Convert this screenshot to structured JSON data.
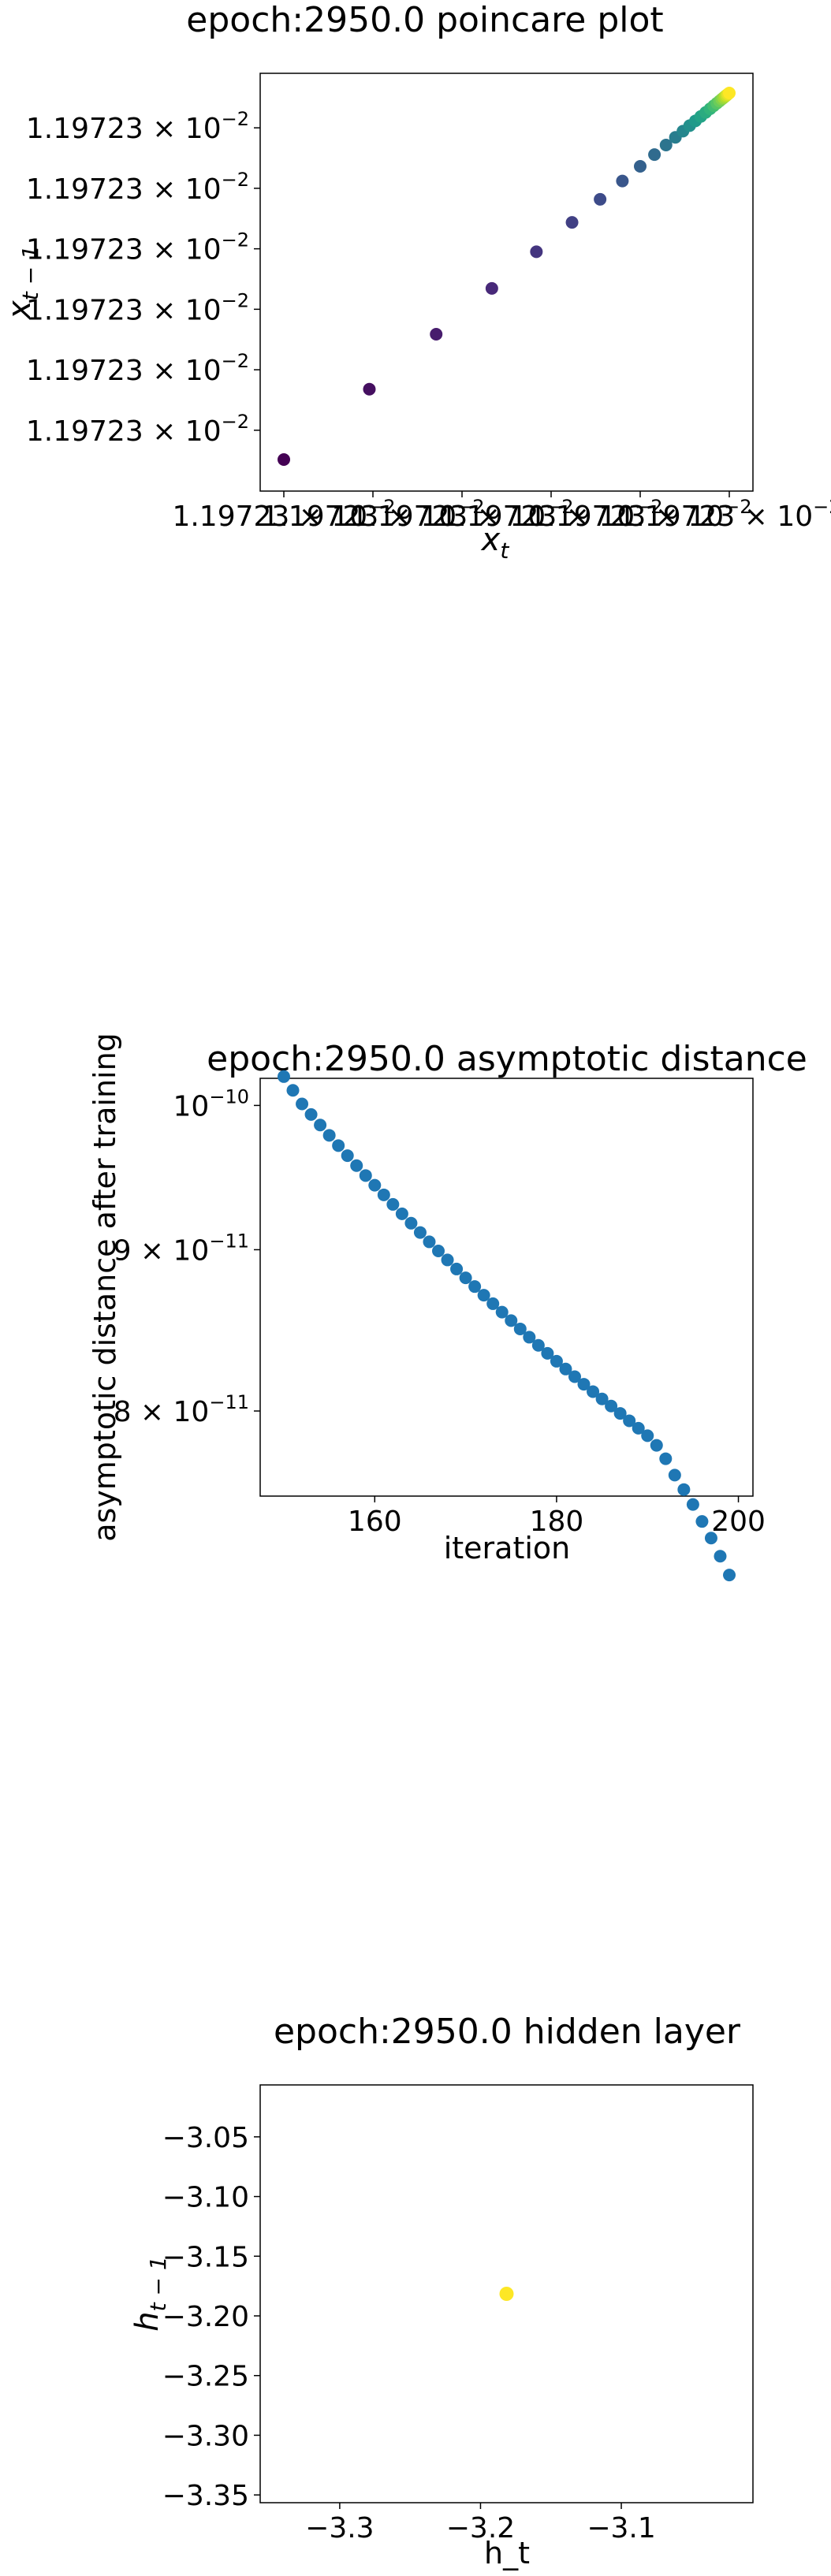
{
  "chart_data": [
    {
      "type": "scatter",
      "title": "epoch:2950.0 poincare plot",
      "xlabel": "x",
      "xlabel_sub": "t",
      "ylabel": "x",
      "ylabel_sub": "t − 1",
      "tick_mantissa": "1.19723",
      "tick_times": "×",
      "tick_base": "10",
      "tick_exp": "−2",
      "xlim": [
        0,
        1
      ],
      "ylim": [
        0,
        1
      ],
      "y_ticks": [
        0.08,
        0.245,
        0.41,
        0.575,
        0.74,
        0.905
      ],
      "x_ticks": [
        0.0,
        0.2,
        0.4,
        0.6,
        0.8,
        1.0
      ],
      "x": [
        0.0,
        0.192,
        0.342,
        0.467,
        0.567,
        0.647,
        0.71,
        0.76,
        0.8,
        0.832,
        0.858,
        0.879,
        0.896,
        0.911,
        0.924,
        0.936,
        0.947,
        0.957,
        0.965,
        0.972,
        0.978,
        0.983,
        0.987,
        0.991,
        0.994,
        0.997,
        1.0
      ],
      "y": [
        0.0,
        0.192,
        0.342,
        0.467,
        0.567,
        0.647,
        0.71,
        0.76,
        0.8,
        0.832,
        0.858,
        0.879,
        0.896,
        0.911,
        0.924,
        0.936,
        0.947,
        0.957,
        0.965,
        0.972,
        0.978,
        0.983,
        0.987,
        0.991,
        0.994,
        0.997,
        1.0
      ],
      "colormap": [
        "#440154",
        "#482878",
        "#3e4989",
        "#31688e",
        "#26828e",
        "#1f9e89",
        "#35b779",
        "#6ece58",
        "#b5de2b",
        "#fde725"
      ]
    },
    {
      "type": "scatter",
      "title": "epoch:2950.0 asymptotic distance",
      "xlabel": "iteration",
      "ylabel": "asymptotic distance after training",
      "xlim": [
        147.4,
        201.6
      ],
      "log_ylim": [
        -10.1239,
        -9.9914
      ],
      "x_ticks": [
        160,
        180,
        200
      ],
      "y_ticks": [
        {
          "base": "10",
          "exp": "−10",
          "coef": "",
          "value": 1e-10
        },
        {
          "base": "10",
          "exp": "−11",
          "coef": "9",
          "value": 9e-11
        },
        {
          "base": "10",
          "exp": "−11",
          "coef": "8",
          "value": 8e-11
        }
      ],
      "times": "×",
      "x": [
        150,
        151,
        152,
        153,
        154,
        155,
        156,
        157,
        158,
        159,
        160,
        161,
        162,
        163,
        164,
        165,
        166,
        167,
        168,
        169,
        170,
        171,
        172,
        173,
        174,
        175,
        176,
        177,
        178,
        179,
        180,
        181,
        182,
        183,
        184,
        185,
        186,
        187,
        188,
        189,
        190,
        191,
        192,
        193,
        194,
        195,
        196,
        197,
        198,
        199
      ],
      "values": [
        1.0213e-10,
        1.0111e-10,
        1.0011e-10,
        9.934e-11,
        9.858e-11,
        9.784e-11,
        9.711e-11,
        9.64e-11,
        9.57e-11,
        9.501e-11,
        9.434e-11,
        9.368e-11,
        9.303e-11,
        9.239e-11,
        9.176e-11,
        9.114e-11,
        9.052e-11,
        8.992e-11,
        8.933e-11,
        8.874e-11,
        8.817e-11,
        8.761e-11,
        8.706e-11,
        8.652e-11,
        8.599e-11,
        8.546e-11,
        8.494e-11,
        8.443e-11,
        8.393e-11,
        8.344e-11,
        8.296e-11,
        8.249e-11,
        8.203e-11,
        8.158e-11,
        8.114e-11,
        8.071e-11,
        8.029e-11,
        7.986e-11,
        7.943e-11,
        7.9e-11,
        7.857e-11,
        7.802e-11,
        7.726e-11,
        7.634e-11,
        7.554e-11,
        7.472e-11,
        7.38e-11,
        7.291e-11,
        7.195e-11,
        7.097e-11
      ],
      "color": "#1f77b4"
    },
    {
      "type": "scatter",
      "title": "epoch:2950.0 hidden layer",
      "xlabel": "h_t",
      "ylabel": "h",
      "ylabel_sub": "t − 1",
      "xlim": [
        -3.3565,
        -3.0065
      ],
      "ylim": [
        -3.3565,
        -3.0065
      ],
      "x_ticks": [
        -3.3,
        -3.2,
        -3.1
      ],
      "x_tick_labels": [
        "−3.3",
        "−3.2",
        "−3.1"
      ],
      "y_ticks": [
        -3.05,
        -3.1,
        -3.15,
        -3.2,
        -3.25,
        -3.3,
        -3.35
      ],
      "y_tick_labels": [
        "−3.05",
        "−3.10",
        "−3.15",
        "−3.20",
        "−3.25",
        "−3.30",
        "−3.35"
      ],
      "x": [
        -3.1815
      ],
      "y": [
        -3.1815
      ],
      "color": "#fde725"
    }
  ]
}
